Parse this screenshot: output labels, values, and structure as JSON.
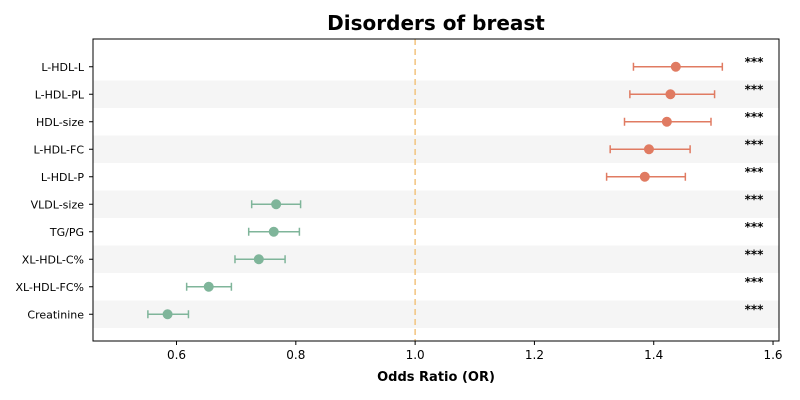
{
  "chart_data": {
    "type": "scatter",
    "title": "Disorders of breast",
    "xlabel": "Odds Ratio (OR)",
    "ylabel": "",
    "xlim": [
      0.46,
      1.61
    ],
    "xticks": [
      "0.6",
      "0.8",
      "1.0",
      "1.2",
      "1.4",
      "1.6"
    ],
    "reference_line": 1.0,
    "colors": {
      "positive": "#e07b62",
      "negative": "#7fb59a",
      "reference": "#f2c37e",
      "stripe": "#f5f5f5"
    },
    "rows": [
      {
        "label": "L-HDL-L",
        "or": 1.437,
        "lower": 1.366,
        "upper": 1.515,
        "sig": "***"
      },
      {
        "label": "L-HDL-PL",
        "or": 1.428,
        "lower": 1.36,
        "upper": 1.502,
        "sig": "***"
      },
      {
        "label": "HDL-size",
        "or": 1.422,
        "lower": 1.351,
        "upper": 1.496,
        "sig": "***"
      },
      {
        "label": "L-HDL-FC",
        "or": 1.392,
        "lower": 1.327,
        "upper": 1.461,
        "sig": "***"
      },
      {
        "label": "L-HDL-P",
        "or": 1.385,
        "lower": 1.321,
        "upper": 1.453,
        "sig": "***"
      },
      {
        "label": "VLDL-size",
        "or": 0.767,
        "lower": 0.726,
        "upper": 0.808,
        "sig": "***"
      },
      {
        "label": "TG/PG",
        "or": 0.763,
        "lower": 0.721,
        "upper": 0.806,
        "sig": "***"
      },
      {
        "label": "XL-HDL-C%",
        "or": 0.738,
        "lower": 0.698,
        "upper": 0.782,
        "sig": "***"
      },
      {
        "label": "XL-HDL-FC%",
        "or": 0.654,
        "lower": 0.617,
        "upper": 0.692,
        "sig": "***"
      },
      {
        "label": "Creatinine",
        "or": 0.585,
        "lower": 0.552,
        "upper": 0.62,
        "sig": "***"
      }
    ]
  }
}
